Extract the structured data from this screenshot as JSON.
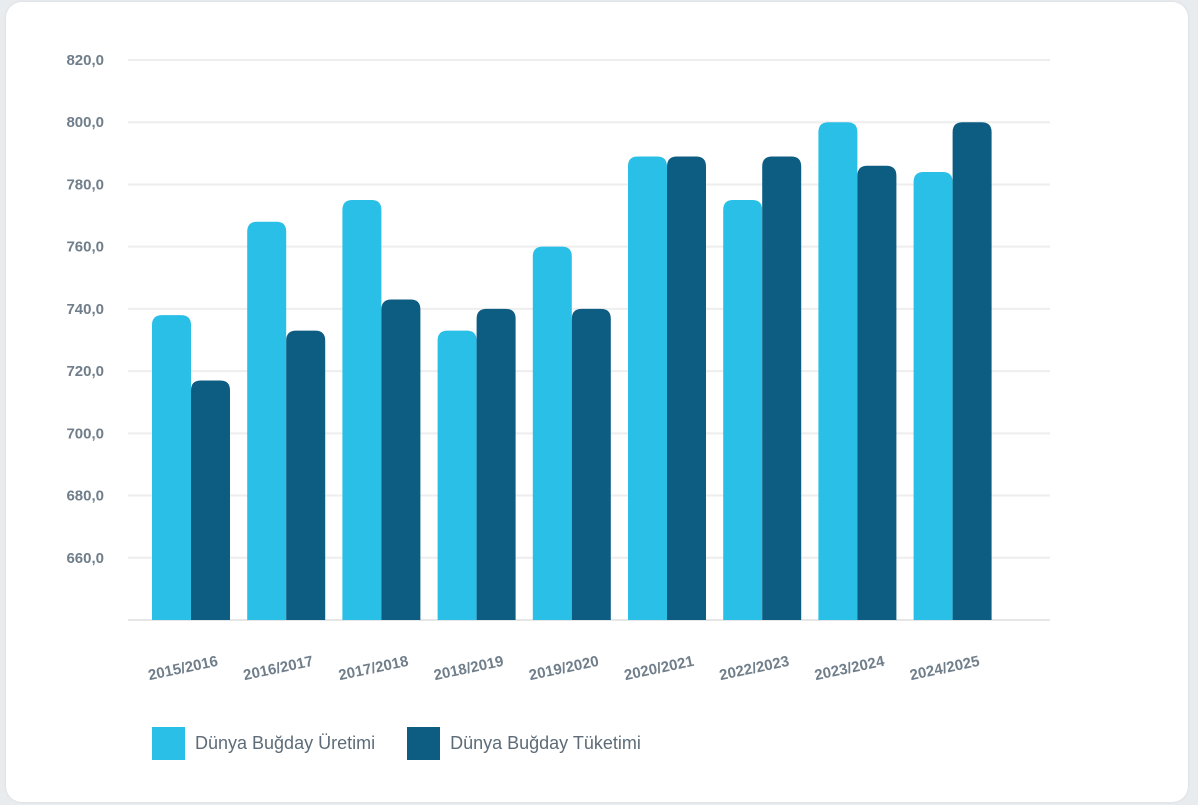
{
  "chart_data": {
    "type": "bar",
    "categories": [
      "2015/2016",
      "2016/2017",
      "2017/2018",
      "2018/2019",
      "2019/2020",
      "2020/2021",
      "2022/2023",
      "2023/2024",
      "2024/2025"
    ],
    "series": [
      {
        "name": "Dünya Buğday Üretimi",
        "color": "#29bfe6",
        "values": [
          738,
          768,
          775,
          733,
          760,
          789,
          775,
          800,
          784
        ]
      },
      {
        "name": "Dünya Buğday Tüketimi",
        "color": "#0d5c82",
        "values": [
          717,
          733,
          743,
          740,
          740,
          789,
          789,
          786,
          800
        ]
      }
    ],
    "ylim": [
      640,
      820
    ],
    "yticks": [
      "660,0",
      "680,0",
      "700,0",
      "720,0",
      "740,0",
      "760,0",
      "780,0",
      "800,0",
      "820,0"
    ],
    "ytick_values": [
      660,
      680,
      700,
      720,
      740,
      760,
      780,
      800,
      820
    ],
    "grid": true,
    "legend_position": "bottom-left",
    "title": "",
    "xlabel": "",
    "ylabel": ""
  }
}
